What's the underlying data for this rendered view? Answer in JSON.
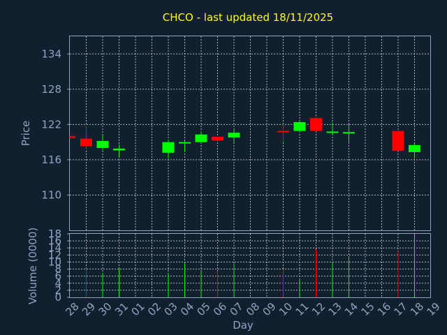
{
  "chart_data": [
    {
      "type": "candlestick",
      "title": "CHCO - last updated 18/11/2025",
      "ylabel": "Price",
      "ylim": [
        104,
        137
      ],
      "yticks": [
        110,
        116,
        122,
        128,
        134
      ],
      "grid": true,
      "up_color": "#00ff00",
      "down_color": "#ff0000",
      "candles": [
        {
          "day": "28",
          "open": 120.0,
          "close": 119.7,
          "high": 120.0,
          "low": 119.7
        },
        {
          "day": "29",
          "open": 119.6,
          "close": 118.3,
          "high": 121.8,
          "low": 117.7
        },
        {
          "day": "30",
          "open": 118.0,
          "close": 119.2,
          "high": 120.2,
          "low": 117.6
        },
        {
          "day": "31",
          "open": 117.6,
          "close": 117.9,
          "high": 118.6,
          "low": 116.3
        },
        {
          "day": "03",
          "open": 117.2,
          "close": 119.0,
          "high": 119.4,
          "low": 116.2
        },
        {
          "day": "04",
          "open": 118.8,
          "close": 119.0,
          "high": 119.2,
          "low": 117.3
        },
        {
          "day": "05",
          "open": 119.0,
          "close": 120.3,
          "high": 120.8,
          "low": 118.8
        },
        {
          "day": "06",
          "open": 119.9,
          "close": 119.3,
          "high": 119.9,
          "low": 119.3
        },
        {
          "day": "07",
          "open": 119.8,
          "close": 120.6,
          "high": 121.2,
          "low": 119.0
        },
        {
          "day": "10",
          "open": 120.9,
          "close": 120.7,
          "high": 122.1,
          "low": 119.1
        },
        {
          "day": "11",
          "open": 120.9,
          "close": 122.4,
          "high": 122.8,
          "low": 120.6
        },
        {
          "day": "12",
          "open": 123.1,
          "close": 120.9,
          "high": 123.4,
          "low": 120.8
        },
        {
          "day": "13",
          "open": 120.6,
          "close": 120.8,
          "high": 122.4,
          "low": 120.2
        },
        {
          "day": "14",
          "open": 120.5,
          "close": 120.7,
          "high": 122.1,
          "low": 118.8
        },
        {
          "day": "17",
          "open": 120.9,
          "close": 117.5,
          "high": 120.9,
          "low": 117.5
        },
        {
          "day": "18",
          "open": 117.3,
          "close": 118.5,
          "high": 118.8,
          "low": 116.2
        }
      ]
    },
    {
      "type": "bar",
      "ylabel": "Volume (0000)",
      "xlabel": "Day",
      "ylim": [
        0,
        18
      ],
      "yticks": [
        0,
        2,
        4,
        6,
        8,
        10,
        12,
        14,
        16,
        18
      ],
      "grid": true,
      "categories": [
        "28",
        "29",
        "30",
        "31",
        "01",
        "02",
        "03",
        "04",
        "05",
        "06",
        "07",
        "08",
        "09",
        "10",
        "11",
        "12",
        "13",
        "14",
        "15",
        "16",
        "17",
        "18",
        "19"
      ],
      "values": [
        0,
        8.3,
        7.0,
        8.0,
        0,
        0,
        6.6,
        9.6,
        7.3,
        7.4,
        9.6,
        0,
        0,
        7.8,
        5.2,
        13.6,
        10.0,
        11.6,
        0,
        0,
        13.0,
        17.6,
        0
      ],
      "direction": [
        "none",
        "down",
        "up",
        "up",
        "none",
        "none",
        "up",
        "up",
        "up",
        "down",
        "up",
        "none",
        "none",
        "down",
        "up",
        "down",
        "up",
        "up",
        "none",
        "none",
        "down",
        "up",
        "none"
      ]
    }
  ]
}
